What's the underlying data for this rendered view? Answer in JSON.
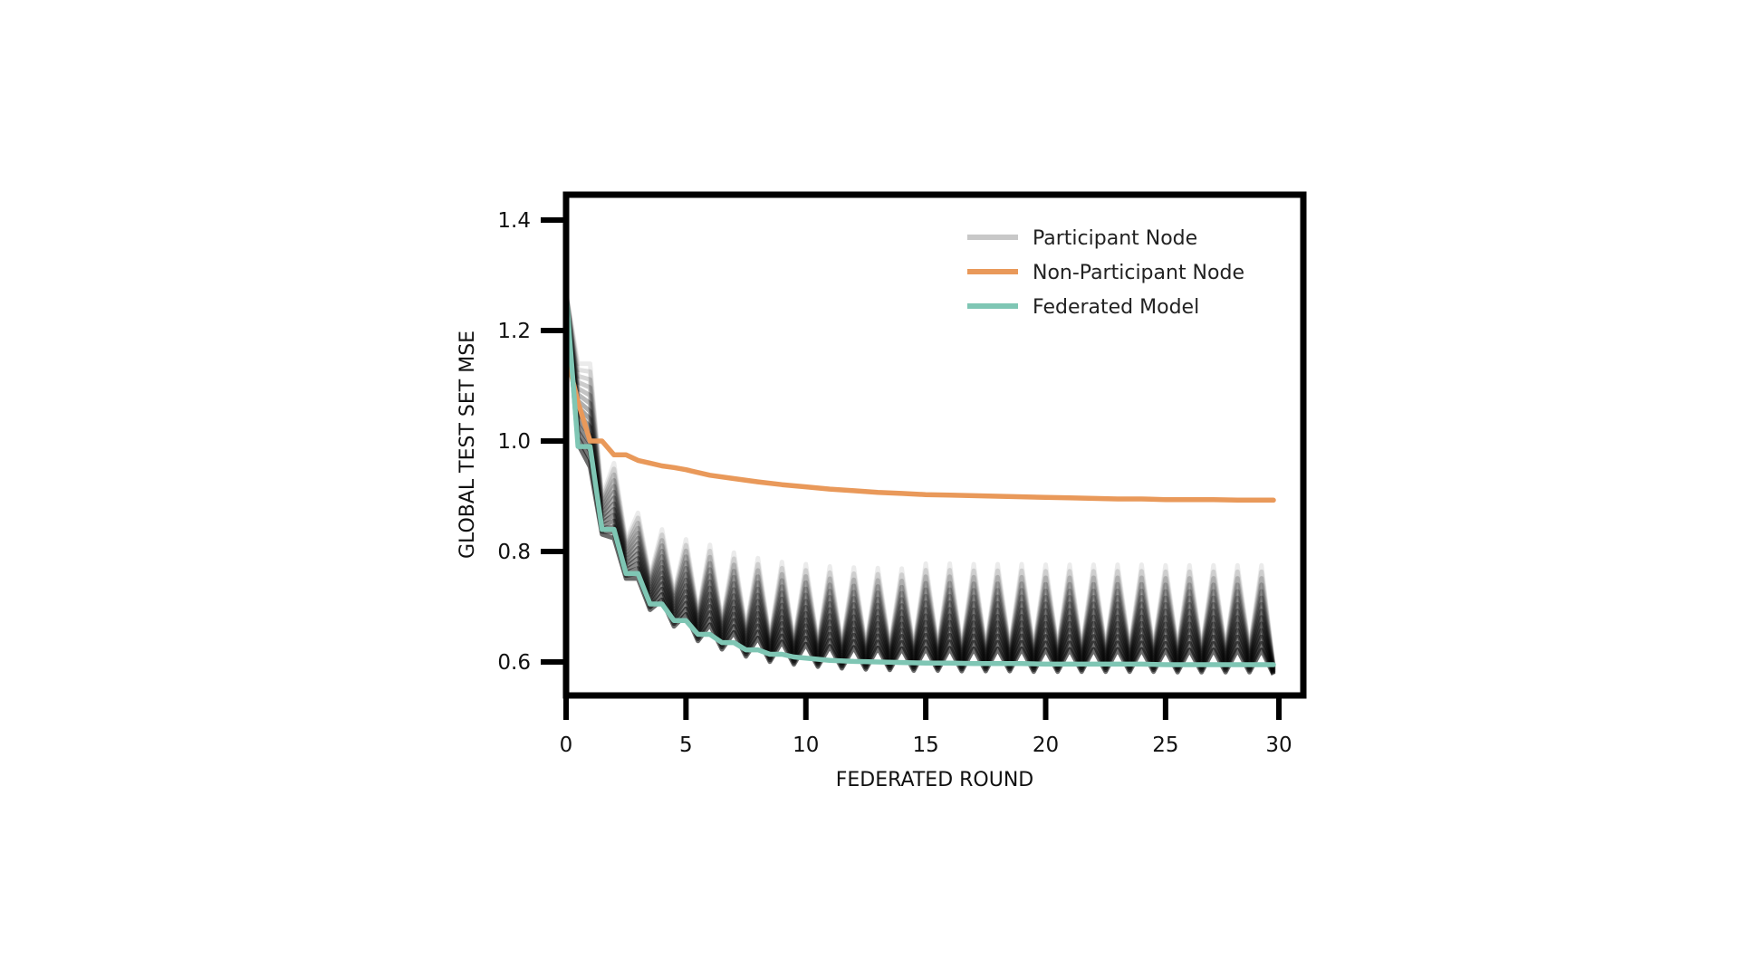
{
  "chart_data": {
    "type": "line",
    "xlabel": "FEDERATED ROUND",
    "ylabel": "GLOBAL TEST SET MSE",
    "xlim": [
      0,
      30
    ],
    "ylim": [
      0.54,
      1.45
    ],
    "xticks": [
      0,
      5,
      10,
      15,
      20,
      25,
      30
    ],
    "xtick_labels": [
      "0",
      "5",
      "10",
      "15",
      "20",
      "25",
      "30"
    ],
    "yticks": [
      0.6,
      0.8,
      1.0,
      1.2,
      1.4
    ],
    "ytick_labels": [
      "0.6",
      "0.8",
      "1.0",
      "1.2",
      "1.4"
    ],
    "grid": false,
    "legend_position": "top-right",
    "legend": [
      {
        "label": "Participant Node",
        "color": "#c8c8c8"
      },
      {
        "label": "Non-Participant Node",
        "color": "#e9995a"
      },
      {
        "label": "Federated Model",
        "color": "#7fc6b4"
      }
    ],
    "series": [
      {
        "name": "Non-Participant Node",
        "color": "#e9995a",
        "x": [
          0,
          0.5,
          1,
          1.5,
          2,
          2.5,
          3,
          3.5,
          4,
          4.5,
          5,
          6,
          7,
          8,
          9,
          10,
          11,
          12,
          13,
          14,
          15,
          16,
          17,
          18,
          19,
          20,
          21,
          22,
          23,
          24,
          25,
          26,
          27,
          28,
          29,
          29.5
        ],
        "y": [
          1.16,
          1.07,
          1.0,
          1.0,
          0.975,
          0.975,
          0.965,
          0.96,
          0.955,
          0.952,
          0.948,
          0.938,
          0.932,
          0.926,
          0.921,
          0.917,
          0.913,
          0.91,
          0.907,
          0.905,
          0.903,
          0.902,
          0.901,
          0.9,
          0.899,
          0.898,
          0.897,
          0.896,
          0.895,
          0.895,
          0.894,
          0.894,
          0.894,
          0.893,
          0.893,
          0.893
        ]
      },
      {
        "name": "Federated Model",
        "color": "#7fc6b4",
        "x": [
          0,
          0.5,
          1,
          1.5,
          2,
          2.5,
          3,
          3.5,
          4,
          4.5,
          5,
          5.5,
          6,
          6.5,
          7,
          7.5,
          8,
          8.5,
          9,
          9.5,
          10,
          11,
          12,
          13,
          14,
          15,
          16,
          17,
          18,
          19,
          20,
          21,
          22,
          23,
          24,
          25,
          26,
          27,
          28,
          29,
          29.5
        ],
        "y": [
          1.27,
          0.99,
          0.99,
          0.84,
          0.84,
          0.76,
          0.76,
          0.705,
          0.705,
          0.675,
          0.675,
          0.65,
          0.65,
          0.635,
          0.635,
          0.622,
          0.622,
          0.614,
          0.614,
          0.609,
          0.607,
          0.603,
          0.601,
          0.6,
          0.599,
          0.598,
          0.598,
          0.597,
          0.597,
          0.597,
          0.596,
          0.596,
          0.596,
          0.596,
          0.596,
          0.595,
          0.595,
          0.595,
          0.595,
          0.595,
          0.595
        ]
      }
    ],
    "participant_node_band": {
      "name": "Participant Node",
      "color": "#000000",
      "note_description": "many translucent oscillating node curves",
      "rounds": [
        0,
        0.5,
        1,
        1.5,
        2,
        2.5,
        3,
        3.5,
        4,
        4.5,
        5,
        5.5,
        6,
        6.5,
        7,
        7.5,
        8,
        8.5,
        9,
        9.5,
        10,
        10.5,
        11,
        11.5,
        12,
        12.5,
        13,
        13.5,
        14,
        14.5,
        15,
        15.5,
        16,
        16.5,
        17,
        17.5,
        18,
        18.5,
        19,
        19.5,
        20,
        20.5,
        21,
        21.5,
        22,
        22.5,
        23,
        23.5,
        24,
        24.5,
        25,
        25.5,
        26,
        26.5,
        27,
        27.5,
        28,
        28.5,
        29,
        29.5
      ],
      "baseline": [
        1.27,
        0.99,
        0.92,
        0.84,
        0.8,
        0.76,
        0.73,
        0.705,
        0.69,
        0.675,
        0.662,
        0.65,
        0.642,
        0.635,
        0.628,
        0.622,
        0.618,
        0.614,
        0.611,
        0.609,
        0.607,
        0.605,
        0.603,
        0.602,
        0.601,
        0.6,
        0.6,
        0.599,
        0.599,
        0.598,
        0.598,
        0.598,
        0.598,
        0.597,
        0.597,
        0.597,
        0.597,
        0.597,
        0.597,
        0.596,
        0.596,
        0.596,
        0.596,
        0.596,
        0.596,
        0.596,
        0.596,
        0.596,
        0.596,
        0.596,
        0.595,
        0.595,
        0.595,
        0.595,
        0.595,
        0.595,
        0.595,
        0.595,
        0.595,
        0.595
      ],
      "peak_amplitude": [
        0.0,
        0.15,
        0.22,
        0.06,
        0.16,
        0.06,
        0.14,
        0.05,
        0.15,
        0.05,
        0.16,
        0.04,
        0.17,
        0.04,
        0.17,
        0.04,
        0.17,
        0.03,
        0.17,
        0.03,
        0.17,
        0.03,
        0.17,
        0.03,
        0.17,
        0.03,
        0.17,
        0.03,
        0.17,
        0.03,
        0.18,
        0.03,
        0.18,
        0.03,
        0.18,
        0.03,
        0.18,
        0.03,
        0.18,
        0.03,
        0.18,
        0.03,
        0.18,
        0.03,
        0.18,
        0.03,
        0.18,
        0.03,
        0.18,
        0.03,
        0.18,
        0.03,
        0.18,
        0.03,
        0.18,
        0.03,
        0.18,
        0.03,
        0.18,
        0.0
      ],
      "num_nodes": 14
    }
  }
}
